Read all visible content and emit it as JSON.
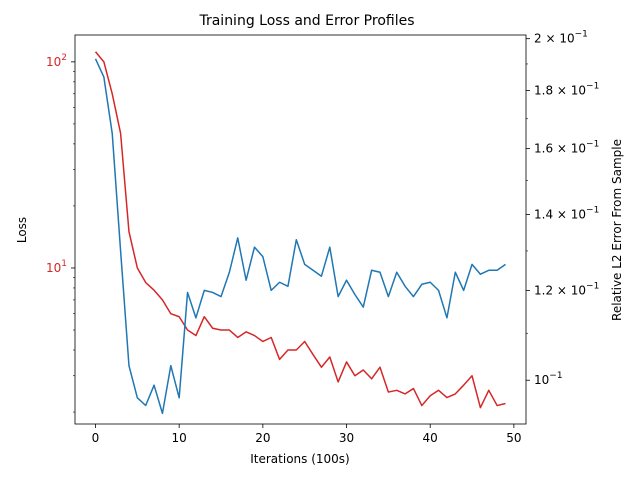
{
  "chart_data": {
    "type": "line",
    "title": "Training Loss and Error Profiles",
    "xlabel": "Iterations (100s)",
    "x_ticks": [
      "0",
      "10",
      "20",
      "30",
      "40",
      "50"
    ],
    "xlim": [
      -2.45,
      51.45
    ],
    "x": [
      0,
      1,
      2,
      3,
      4,
      5,
      6,
      7,
      8,
      9,
      10,
      11,
      12,
      13,
      14,
      15,
      16,
      17,
      18,
      19,
      20,
      21,
      22,
      23,
      24,
      25,
      26,
      27,
      28,
      29,
      30,
      31,
      32,
      33,
      34,
      35,
      36,
      37,
      38,
      39,
      40,
      41,
      42,
      43,
      44,
      45,
      46,
      47,
      48,
      49
    ],
    "left_axis": {
      "label": "Loss",
      "color": "#d62728",
      "scale": "log",
      "ylim": [
        1.75,
        135
      ],
      "tick_labels": [
        "10^2",
        "10^1"
      ],
      "tick_values": [
        100,
        10
      ]
    },
    "right_axis": {
      "label": "Relative L2 Error From Sample",
      "color": "#1f77b4",
      "scale": "log",
      "ylim": [
        0.0915,
        0.2015
      ],
      "tick_labels": [
        "2 × 10^-1",
        "1.8 × 10^-1",
        "1.6 × 10^-1",
        "1.4 × 10^-1",
        "1.2 × 10^-1",
        "10^-1"
      ],
      "tick_values": [
        0.2,
        0.18,
        0.16,
        0.14,
        0.12,
        0.1
      ]
    },
    "series": [
      {
        "axis": "left",
        "color": "#d62728",
        "values": [
          112,
          100,
          70,
          45,
          15,
          10,
          8.5,
          7.8,
          7.0,
          6.0,
          5.8,
          5.0,
          4.7,
          5.8,
          5.1,
          5.0,
          5.0,
          4.6,
          4.9,
          4.7,
          4.4,
          4.6,
          3.6,
          4.0,
          4.0,
          4.4,
          3.8,
          3.3,
          3.7,
          2.8,
          3.5,
          3.0,
          3.2,
          2.9,
          3.3,
          2.5,
          2.55,
          2.45,
          2.6,
          2.15,
          2.4,
          2.55,
          2.35,
          2.45,
          2.7,
          3.0,
          2.1,
          2.55,
          2.15,
          2.2
        ]
      },
      {
        "axis": "right",
        "color": "#1f77b4",
        "values": [
          0.192,
          0.185,
          0.165,
          0.13,
          0.103,
          0.0965,
          0.095,
          0.099,
          0.0935,
          0.103,
          0.0965,
          0.1195,
          0.1135,
          0.12,
          0.1195,
          0.1185,
          0.1245,
          0.1335,
          0.1225,
          0.131,
          0.1285,
          0.12,
          0.122,
          0.121,
          0.133,
          0.1265,
          0.125,
          0.1235,
          0.131,
          0.1185,
          0.1225,
          0.119,
          0.116,
          0.125,
          0.1245,
          0.1185,
          0.1245,
          0.121,
          0.1185,
          0.1215,
          0.122,
          0.12,
          0.1135,
          0.1245,
          0.12,
          0.1265,
          0.124,
          0.125,
          0.125,
          0.1265
        ]
      }
    ]
  }
}
